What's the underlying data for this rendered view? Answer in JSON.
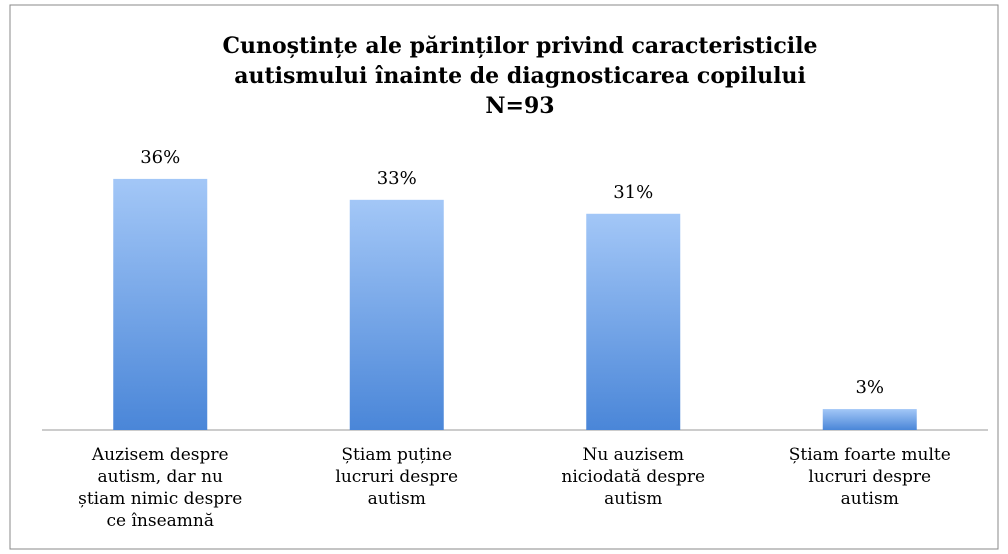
{
  "chart_data": {
    "type": "bar",
    "title": [
      "Cunoștințe ale părinților privind caracteristicile",
      "autismului înainte de diagnosticarea copilului",
      "N=93"
    ],
    "categories": [
      "Auzisem despre autism, dar nu știam nimic despre ce înseamnă",
      "Știam puține lucruri despre autism",
      "Nu auzisem niciodată despre autism",
      "Știam foarte multe lucruri despre autism"
    ],
    "values": [
      36,
      33,
      31,
      3
    ],
    "value_labels": [
      "36%",
      "33%",
      "31%",
      "3%"
    ],
    "color": "#4a86d8",
    "ylim": [
      0,
      40
    ]
  }
}
